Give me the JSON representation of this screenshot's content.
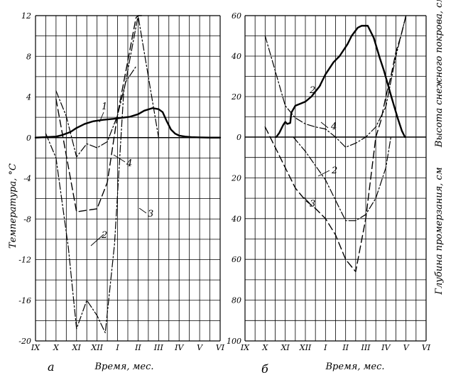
{
  "chart_data": [
    {
      "type": "line",
      "panel_letter": "а",
      "xlabel": "Время, мес.",
      "ylabel": "Температура, °С",
      "categories": [
        "IX",
        "X",
        "XI",
        "XII",
        "I",
        "II",
        "III",
        "IV",
        "V",
        "VI"
      ],
      "ylim": [
        -20,
        12
      ],
      "yticks": [
        "-20",
        "-16",
        "-12",
        "-8",
        "-4",
        "0",
        "4",
        "8",
        "12"
      ],
      "grid": true,
      "series": [
        {
          "name": "1",
          "style": "solid-thick",
          "x": [
            0,
            0.5,
            1,
            1.3,
            1.7,
            2,
            2.4,
            2.8,
            3.3,
            3.8,
            4.2,
            4.6,
            5,
            5.3,
            5.7,
            6,
            6.2,
            6.4,
            6.6,
            6.8,
            7,
            7.3,
            7.6,
            8,
            8.5,
            9
          ],
          "y": [
            0,
            0.05,
            0.1,
            0.25,
            0.55,
            0.95,
            1.35,
            1.6,
            1.75,
            1.85,
            1.95,
            2.05,
            2.3,
            2.65,
            2.9,
            2.8,
            2.5,
            1.6,
            0.8,
            0.4,
            0.2,
            0.1,
            0.05,
            0.02,
            0,
            0
          ]
        },
        {
          "name": "2",
          "style": "dash-dot",
          "x": [
            0.5,
            1,
            1.6,
            2,
            2.5,
            3,
            3.4,
            3.85,
            4.3,
            5,
            6,
            6.7
          ],
          "y": [
            0.4,
            -2,
            -10.8,
            -18.8,
            -16,
            -17.5,
            -19.2,
            -10.5,
            4.5,
            12,
            0,
            0
          ]
        },
        {
          "name": "3",
          "style": "dashed",
          "x": [
            1,
            2,
            3,
            3.5,
            4,
            4.4,
            4.9,
            5,
            5.2
          ],
          "y": [
            3.8,
            -7.3,
            -7,
            -4.4,
            2.3,
            6.5,
            11.8,
            12,
            12
          ]
        },
        {
          "name": "4",
          "style": "dash-dot",
          "x": [
            1,
            1.5,
            2,
            2.5,
            3,
            3.5,
            4,
            4.4,
            4.9
          ],
          "y": [
            4.6,
            2.1,
            -1.9,
            -0.6,
            -1,
            -0.4,
            2.2,
            5.5,
            7
          ]
        }
      ],
      "series_labels": [
        "1",
        "2",
        "3",
        "4"
      ]
    },
    {
      "type": "line",
      "panel_letter": "б",
      "xlabel": "Время, мес.",
      "ylabel_top": "Высота снежного покрова, см",
      "ylabel_bottom": "Глубина промерзания, см",
      "categories": [
        "IX",
        "X",
        "XI",
        "XII",
        "I",
        "II",
        "III",
        "IV",
        "V",
        "VI"
      ],
      "yticks_snow": [
        "60",
        "40",
        "20",
        "0"
      ],
      "yticks_frost": [
        "20",
        "40",
        "60",
        "80",
        "100"
      ],
      "ylim_snow": [
        0,
        60
      ],
      "ylim_frost": [
        0,
        100
      ],
      "grid": true,
      "snow_series": [
        {
          "name": "2",
          "style": "solid-thick",
          "x": [
            1.55,
            1.7,
            1.9,
            2,
            2.1,
            2.25,
            2.3,
            2.5,
            3,
            3.3,
            3.7,
            4,
            4.4,
            4.7,
            5.1,
            5.3,
            5.6,
            5.8,
            5.95,
            6.1,
            6.4,
            6.7,
            6.9,
            7.1,
            7.3,
            7.6,
            7.8,
            7.95
          ],
          "y": [
            0,
            2,
            6,
            7.5,
            6.5,
            7,
            12,
            15.5,
            17.5,
            20,
            25,
            31,
            37,
            40,
            46,
            50,
            54,
            55,
            55,
            55,
            49,
            39,
            33,
            26,
            19,
            9,
            3,
            0
          ]
        },
        {
          "name": "4",
          "style": "dash-dot",
          "x": [
            1,
            2,
            2.5,
            3,
            3.5,
            4,
            4.5,
            5,
            5.5,
            6,
            6.5,
            7,
            7.5,
            8
          ],
          "y": [
            50,
            15.5,
            9.5,
            6.5,
            5,
            4,
            0,
            -5,
            -3,
            0,
            5,
            15,
            40,
            60
          ]
        },
        {
          "name": "3",
          "style": "dashed-snow",
          "x": [
            6.5,
            6.75,
            7,
            7.25,
            7.5,
            7.75,
            8
          ],
          "y": [
            0,
            8,
            20,
            30,
            42,
            50,
            60
          ]
        }
      ],
      "frost_series": [
        {
          "name": "3",
          "style": "dashed",
          "x": [
            1,
            1.5,
            2,
            2.5,
            3,
            3.5,
            4,
            4.5,
            5,
            5.5,
            6,
            6.25,
            6.5
          ],
          "y": [
            -5,
            5,
            15,
            25,
            31,
            35,
            40,
            48,
            60,
            66,
            40,
            20,
            0
          ]
        },
        {
          "name": "2",
          "style": "dash-dot",
          "x": [
            2.4,
            3,
            3.5,
            4,
            5,
            5.5,
            6,
            6.5,
            7,
            7.25
          ],
          "y": [
            0,
            7,
            14,
            21,
            41,
            41,
            38,
            30,
            15,
            0
          ]
        }
      ],
      "series_labels": [
        "2",
        "4",
        "2",
        "3"
      ]
    }
  ]
}
